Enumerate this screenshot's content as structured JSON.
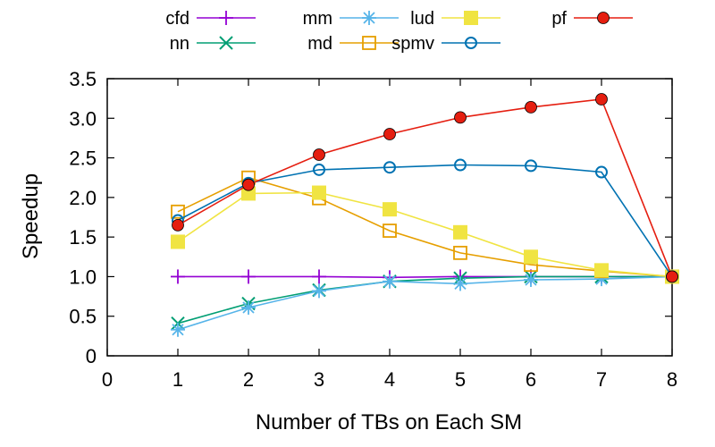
{
  "chart_data": {
    "type": "line",
    "xlabel": "Number of TBs on Each SM",
    "ylabel": "Speedup",
    "xlim": [
      0,
      8
    ],
    "ylim": [
      0,
      3.5
    ],
    "xticks": [
      "0",
      "1",
      "2",
      "3",
      "4",
      "5",
      "6",
      "7",
      "8"
    ],
    "yticks": [
      "0",
      "0.5",
      "1.0",
      "1.5",
      "2.0",
      "2.5",
      "3.0",
      "3.5"
    ],
    "grid": false,
    "legend_position": "top",
    "series": [
      {
        "name": "cfd",
        "color": "#9400d3",
        "marker": "plus",
        "x": [
          1,
          2,
          3,
          4,
          5,
          6,
          7,
          8
        ],
        "y": [
          1.0,
          1.0,
          1.0,
          0.99,
          1.0,
          1.0,
          1.0,
          1.0
        ]
      },
      {
        "name": "nn",
        "color": "#009e73",
        "marker": "cross",
        "x": [
          1,
          2,
          3,
          4,
          5,
          6,
          7,
          8
        ],
        "y": [
          0.41,
          0.66,
          0.83,
          0.94,
          0.98,
          1.0,
          1.0,
          1.0
        ]
      },
      {
        "name": "mm",
        "color": "#56b4e9",
        "marker": "star",
        "x": [
          1,
          2,
          3,
          4,
          5,
          6,
          7,
          8
        ],
        "y": [
          0.33,
          0.61,
          0.82,
          0.94,
          0.91,
          0.96,
          0.97,
          1.0
        ]
      },
      {
        "name": "md",
        "color": "#e69f00",
        "marker": "open-square",
        "x": [
          1,
          2,
          3,
          4,
          5,
          6,
          7,
          8
        ],
        "y": [
          1.82,
          2.25,
          1.99,
          1.58,
          1.3,
          1.15,
          1.07,
          1.0
        ]
      },
      {
        "name": "lud",
        "color": "#f0e442",
        "marker": "filled-square",
        "x": [
          1,
          2,
          3,
          4,
          5,
          6,
          7,
          8
        ],
        "y": [
          1.44,
          2.05,
          2.06,
          1.85,
          1.56,
          1.25,
          1.08,
          1.0
        ]
      },
      {
        "name": "spmv",
        "color": "#0072b2",
        "marker": "open-circle",
        "x": [
          1,
          2,
          3,
          4,
          5,
          6,
          7,
          8
        ],
        "y": [
          1.71,
          2.18,
          2.35,
          2.38,
          2.41,
          2.4,
          2.32,
          1.0
        ]
      },
      {
        "name": "pf",
        "color": "#e51e10",
        "marker": "filled-circle",
        "x": [
          1,
          2,
          3,
          4,
          5,
          6,
          7,
          8
        ],
        "y": [
          1.65,
          2.16,
          2.54,
          2.8,
          3.01,
          3.14,
          3.24,
          1.0
        ]
      }
    ]
  }
}
